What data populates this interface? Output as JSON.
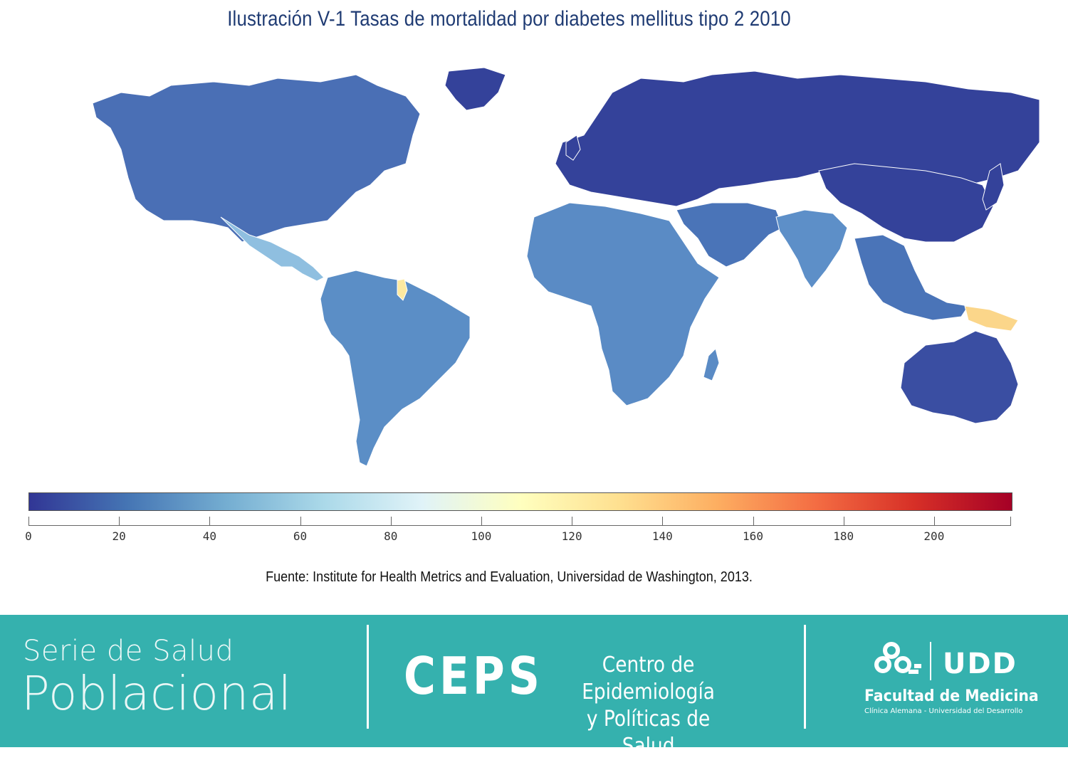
{
  "title": "Ilustración V-1 Tasas de mortalidad por diabetes mellitus tipo 2 2010",
  "legend": {
    "min": 0,
    "max": 217,
    "ticks": [
      "0",
      "20",
      "40",
      "60",
      "80",
      "100",
      "120",
      "140",
      "160",
      "180",
      "200"
    ],
    "colors": [
      "#313695",
      "#4575b4",
      "#74add1",
      "#abd9e9",
      "#e0f3f8",
      "#ffffbf",
      "#fee090",
      "#fdae61",
      "#f46d43",
      "#d73027",
      "#a50026"
    ]
  },
  "regions": [
    {
      "name": "North America",
      "color": "#4a6fb5"
    },
    {
      "name": "Mexico and Central America",
      "color": "#8fbfe0"
    },
    {
      "name": "South America",
      "color": "#5b8ec6"
    },
    {
      "name": "Europe and Russia",
      "color": "#34429a"
    },
    {
      "name": "Africa",
      "color": "#5a8bc5"
    },
    {
      "name": "Middle East",
      "color": "#4a74b8"
    },
    {
      "name": "South Asia",
      "color": "#5d8fc8"
    },
    {
      "name": "East Asia",
      "color": "#34429a"
    },
    {
      "name": "Southeast Asia",
      "color": "#4a74b8"
    },
    {
      "name": "Australia",
      "color": "#3a4ea2"
    },
    {
      "name": "Papua New Guinea",
      "color": "#fbd68a"
    },
    {
      "name": "Guyana",
      "color": "#fde9a0"
    }
  ],
  "source": "Fuente: Institute for Health Metrics and Evaluation, Universidad de Washington, 2013.",
  "footer": {
    "series_line1": "Serie de Salud",
    "series_line2": "Poblacional",
    "ceps": "CEPS",
    "ceps_line1": "Centro de Epidemiología",
    "ceps_line2": "y Políticas de Salud",
    "udd": "UDD",
    "faculty": "Facultad de Medicina",
    "faculty_sub": "Clínica Alemana - Universidad del Desarrollo",
    "background_color": "#35b1ae"
  }
}
